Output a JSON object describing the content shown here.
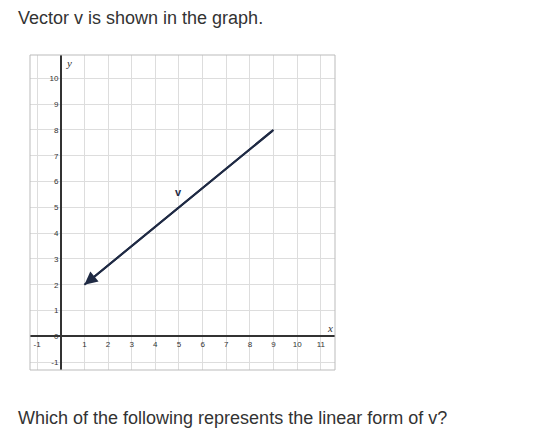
{
  "header": "Vector v is shown in the graph.",
  "question": "Which of the following represents the linear form of v?",
  "chart_data": {
    "type": "vector",
    "xlabel": "x",
    "ylabel": "y",
    "x": [
      9,
      1
    ],
    "values": [
      8,
      2
    ],
    "color": "#1f2a44",
    "marker": "arrow",
    "annotations": [
      {
        "text": "v",
        "x": 5,
        "y": 5.6
      }
    ],
    "xlim": [
      -1.3,
      11.6
    ],
    "ylim": [
      -1.3,
      10.9
    ],
    "xticks": [
      -1,
      1,
      2,
      3,
      4,
      5,
      6,
      7,
      8,
      9,
      10,
      11
    ],
    "yticks": [
      -1,
      0,
      1,
      2,
      3,
      4,
      5,
      6,
      7,
      8,
      9,
      10
    ],
    "grid": true
  }
}
